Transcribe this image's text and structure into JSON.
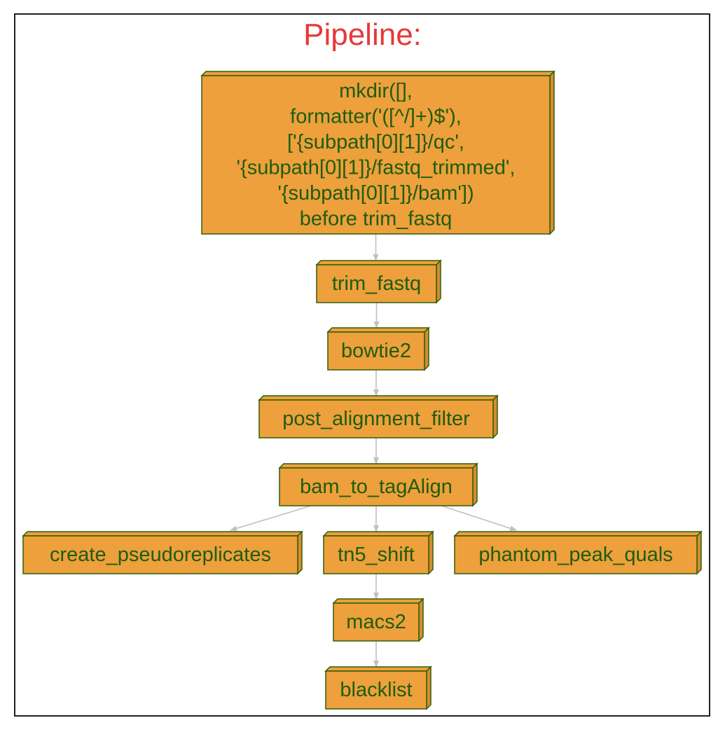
{
  "title": "Pipeline:",
  "colors": {
    "node_fill": "#eda03b",
    "node_side": "#d98c2c",
    "node_stroke": "#2e5e0a",
    "node_text": "#1f5c10",
    "edge": "#c0c0c0",
    "title": "#e8383a"
  },
  "nodes": [
    {
      "id": "mkdir",
      "lines": [
        "mkdir([],",
        "formatter('([^/]+)$'),",
        "['{subpath[0][1]}/qc',",
        "'{subpath[0][1]}/fastq_trimmed',",
        "'{subpath[0][1]}/bam'])",
        "before trim_fastq"
      ]
    },
    {
      "id": "trim_fastq",
      "lines": [
        "trim_fastq"
      ]
    },
    {
      "id": "bowtie2",
      "lines": [
        "bowtie2"
      ]
    },
    {
      "id": "post_alignment_filter",
      "lines": [
        "post_alignment_filter"
      ]
    },
    {
      "id": "bam_to_tagAlign",
      "lines": [
        "bam_to_tagAlign"
      ]
    },
    {
      "id": "create_pseudoreplicates",
      "lines": [
        "create_pseudoreplicates"
      ]
    },
    {
      "id": "tn5_shift",
      "lines": [
        "tn5_shift"
      ]
    },
    {
      "id": "phantom_peak_quals",
      "lines": [
        "phantom_peak_quals"
      ]
    },
    {
      "id": "macs2",
      "lines": [
        "macs2"
      ]
    },
    {
      "id": "blacklist",
      "lines": [
        "blacklist"
      ]
    }
  ],
  "edges": [
    {
      "from": "mkdir",
      "to": "trim_fastq"
    },
    {
      "from": "trim_fastq",
      "to": "bowtie2"
    },
    {
      "from": "bowtie2",
      "to": "post_alignment_filter"
    },
    {
      "from": "post_alignment_filter",
      "to": "bam_to_tagAlign"
    },
    {
      "from": "bam_to_tagAlign",
      "to": "create_pseudoreplicates"
    },
    {
      "from": "bam_to_tagAlign",
      "to": "tn5_shift"
    },
    {
      "from": "bam_to_tagAlign",
      "to": "phantom_peak_quals"
    },
    {
      "from": "tn5_shift",
      "to": "macs2"
    },
    {
      "from": "macs2",
      "to": "blacklist"
    }
  ]
}
